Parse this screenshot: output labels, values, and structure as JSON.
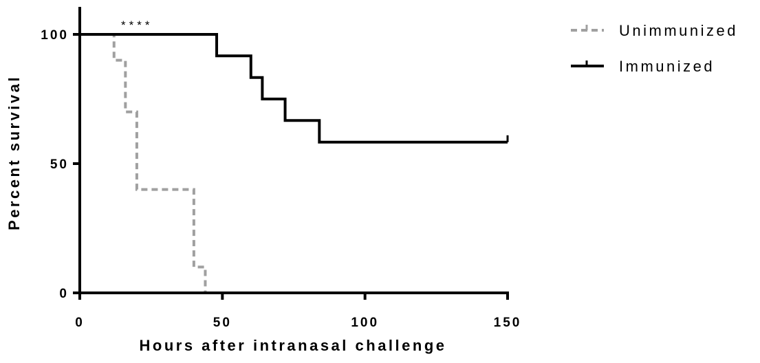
{
  "chart_data": {
    "type": "line",
    "title": "",
    "xlabel": "Hours after intranasal challenge",
    "ylabel": "Percent survival",
    "xlim": [
      0,
      150
    ],
    "ylim": [
      0,
      100
    ],
    "x_ticks": [
      0,
      50,
      100,
      150
    ],
    "x_tick_labels": [
      "0",
      "50",
      "100",
      "150"
    ],
    "y_ticks": [
      0,
      50,
      100
    ],
    "y_tick_labels": [
      "0",
      "50",
      "100"
    ],
    "grid": false,
    "legend_position": "top-right",
    "annotation": "****",
    "series": [
      {
        "name": "Unimmunized",
        "style": "dashed",
        "color": "#a0a0a0",
        "step_x": [
          0,
          12,
          16,
          20,
          40,
          44
        ],
        "step_y": [
          100,
          90,
          70,
          40,
          10,
          0
        ]
      },
      {
        "name": "Immunized",
        "style": "solid",
        "color": "#000000",
        "step_x": [
          0,
          48,
          60,
          64,
          72,
          84,
          150
        ],
        "step_y": [
          100,
          91.7,
          83.3,
          75,
          66.7,
          58.3,
          58.3
        ],
        "censored_x": [
          150
        ],
        "censored_y": [
          58.3
        ]
      }
    ]
  }
}
